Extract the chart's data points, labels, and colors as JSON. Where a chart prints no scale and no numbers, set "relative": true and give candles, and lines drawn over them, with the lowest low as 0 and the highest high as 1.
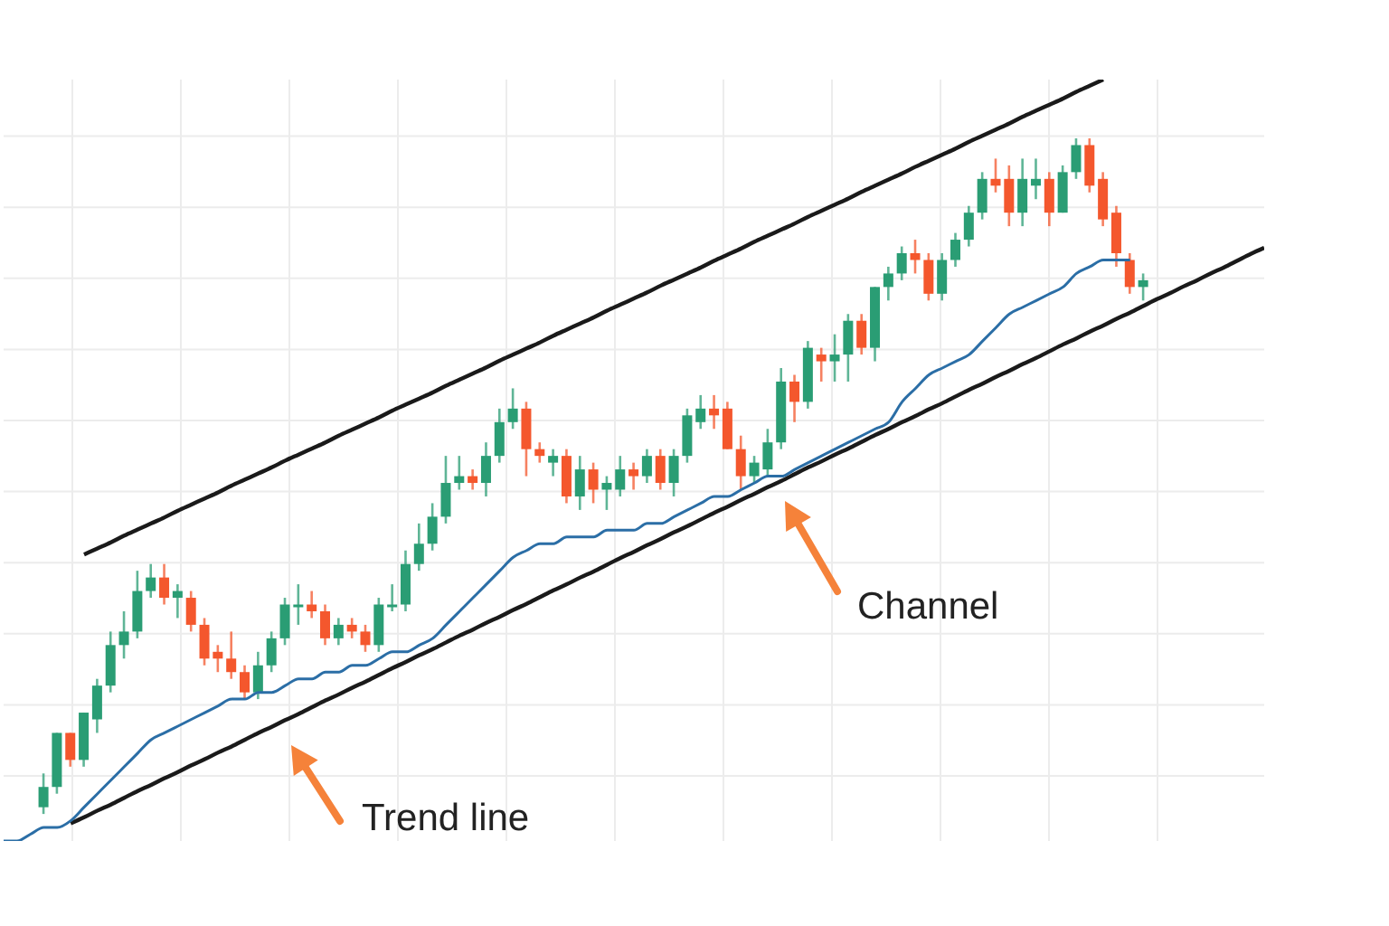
{
  "chart_data": {
    "type": "candlestick",
    "relative": true,
    "grid": true,
    "marker": "none",
    "line_style": "solid",
    "categories": [
      null,
      null,
      null,
      null,
      null,
      null,
      null,
      null,
      null,
      null,
      null,
      null,
      null,
      null,
      null,
      null,
      null,
      null,
      null,
      null,
      null,
      null,
      null,
      null,
      null,
      null,
      null,
      null,
      null,
      null,
      null,
      null,
      null,
      null,
      null,
      null,
      null,
      null,
      null,
      null,
      null,
      null,
      null,
      null,
      null,
      null,
      null,
      null,
      null,
      null,
      null,
      null,
      null,
      null,
      null,
      null,
      null,
      null,
      null,
      null,
      null,
      null,
      null,
      null,
      null,
      null,
      null,
      null,
      null,
      null,
      null,
      null,
      null,
      null,
      null,
      null,
      null,
      null,
      null,
      null,
      null,
      null,
      null,
      null,
      null,
      null,
      null,
      null,
      null,
      null,
      null,
      null,
      null,
      null,
      null
    ],
    "ohlc": [
      null,
      null,
      null,
      [
        0.01,
        0.06,
        0,
        0.04
      ],
      [
        0.04,
        0.12,
        0.03,
        0.12
      ],
      [
        0.12,
        0.12,
        0.07,
        0.08
      ],
      [
        0.08,
        0.15,
        0.07,
        0.15
      ],
      [
        0.14,
        0.2,
        0.12,
        0.19
      ],
      [
        0.19,
        0.27,
        0.18,
        0.25
      ],
      [
        0.25,
        0.3,
        0.23,
        0.27
      ],
      [
        0.27,
        0.36,
        0.26,
        0.33
      ],
      [
        0.33,
        0.37,
        0.32,
        0.35
      ],
      [
        0.35,
        0.37,
        0.31,
        0.32
      ],
      [
        0.32,
        0.34,
        0.29,
        0.33
      ],
      [
        0.32,
        0.33,
        0.27,
        0.28
      ],
      [
        0.28,
        0.29,
        0.22,
        0.23
      ],
      [
        0.24,
        0.25,
        0.21,
        0.23
      ],
      [
        0.23,
        0.27,
        0.2,
        0.21
      ],
      [
        0.21,
        0.22,
        0.17,
        0.18
      ],
      [
        0.18,
        0.24,
        0.17,
        0.22
      ],
      [
        0.22,
        0.27,
        0.21,
        0.26
      ],
      [
        0.26,
        0.32,
        0.25,
        0.31
      ],
      [
        0.31,
        0.34,
        0.28,
        0.31
      ],
      [
        0.31,
        0.33,
        0.29,
        0.3
      ],
      [
        0.3,
        0.31,
        0.25,
        0.26
      ],
      [
        0.26,
        0.29,
        0.25,
        0.28
      ],
      [
        0.28,
        0.29,
        0.26,
        0.27
      ],
      [
        0.27,
        0.28,
        0.24,
        0.25
      ],
      [
        0.25,
        0.32,
        0.24,
        0.31
      ],
      [
        0.31,
        0.34,
        0.3,
        0.31
      ],
      [
        0.31,
        0.39,
        0.3,
        0.37
      ],
      [
        0.37,
        0.43,
        0.36,
        0.4
      ],
      [
        0.4,
        0.46,
        0.39,
        0.44
      ],
      [
        0.44,
        0.53,
        0.43,
        0.49
      ],
      [
        0.49,
        0.53,
        0.48,
        0.5
      ],
      [
        0.5,
        0.51,
        0.48,
        0.49
      ],
      [
        0.49,
        0.55,
        0.47,
        0.53
      ],
      [
        0.53,
        0.6,
        0.52,
        0.58
      ],
      [
        0.58,
        0.63,
        0.57,
        0.6
      ],
      [
        0.6,
        0.61,
        0.5,
        0.54
      ],
      [
        0.54,
        0.55,
        0.52,
        0.53
      ],
      [
        0.52,
        0.54,
        0.5,
        0.53
      ],
      [
        0.53,
        0.54,
        0.46,
        0.47
      ],
      [
        0.47,
        0.53,
        0.45,
        0.51
      ],
      [
        0.51,
        0.52,
        0.46,
        0.48
      ],
      [
        0.48,
        0.5,
        0.45,
        0.49
      ],
      [
        0.48,
        0.53,
        0.47,
        0.51
      ],
      [
        0.51,
        0.52,
        0.48,
        0.5
      ],
      [
        0.5,
        0.54,
        0.49,
        0.53
      ],
      [
        0.53,
        0.54,
        0.48,
        0.49
      ],
      [
        0.49,
        0.54,
        0.47,
        0.53
      ],
      [
        0.53,
        0.6,
        0.52,
        0.59
      ],
      [
        0.58,
        0.62,
        0.57,
        0.6
      ],
      [
        0.6,
        0.62,
        0.57,
        0.59
      ],
      [
        0.6,
        0.61,
        0.54,
        0.54
      ],
      [
        0.54,
        0.56,
        0.48,
        0.5
      ],
      [
        0.5,
        0.53,
        0.49,
        0.52
      ],
      [
        0.51,
        0.57,
        0.5,
        0.55
      ],
      [
        0.55,
        0.66,
        0.54,
        0.64
      ],
      [
        0.64,
        0.65,
        0.58,
        0.61
      ],
      [
        0.61,
        0.7,
        0.6,
        0.69
      ],
      [
        0.68,
        0.69,
        0.64,
        0.67
      ],
      [
        0.67,
        0.71,
        0.64,
        0.68
      ],
      [
        0.68,
        0.74,
        0.64,
        0.73
      ],
      [
        0.73,
        0.74,
        0.68,
        0.69
      ],
      [
        0.69,
        0.78,
        0.67,
        0.78
      ],
      [
        0.78,
        0.81,
        0.76,
        0.8
      ],
      [
        0.8,
        0.84,
        0.79,
        0.83
      ],
      [
        0.83,
        0.85,
        0.8,
        0.82
      ],
      [
        0.82,
        0.83,
        0.76,
        0.77
      ],
      [
        0.77,
        0.83,
        0.76,
        0.82
      ],
      [
        0.82,
        0.86,
        0.81,
        0.85
      ],
      [
        0.85,
        0.9,
        0.84,
        0.89
      ],
      [
        0.89,
        0.95,
        0.88,
        0.94
      ],
      [
        0.94,
        0.97,
        0.92,
        0.93
      ],
      [
        0.94,
        0.96,
        0.87,
        0.89
      ],
      [
        0.89,
        0.97,
        0.87,
        0.94
      ],
      [
        0.93,
        0.97,
        0.91,
        0.94
      ],
      [
        0.94,
        0.95,
        0.87,
        0.89
      ],
      [
        0.89,
        0.96,
        0.89,
        0.95
      ],
      [
        0.95,
        1,
        0.94,
        0.99
      ],
      [
        0.99,
        1,
        0.92,
        0.93
      ],
      [
        0.94,
        0.95,
        0.87,
        0.88
      ],
      [
        0.89,
        0.9,
        0.81,
        0.83
      ],
      [
        0.82,
        0.83,
        0.77,
        0.78
      ],
      [
        0.78,
        0.8,
        0.76,
        0.79
      ],
      null,
      null,
      null,
      null,
      null,
      null,
      null,
      null,
      null
    ],
    "colors": [
      null,
      null,
      null,
      "#2a9d74",
      "#2a9d74",
      "#f4572d",
      "#2a9d74",
      "#2a9d74",
      "#2a9d74",
      "#2a9d74",
      "#2a9d74",
      "#2a9d74",
      "#f4572d",
      "#2a9d74",
      "#f4572d",
      "#f4572d",
      "#f4572d",
      "#f4572d",
      "#f4572d",
      "#2a9d74",
      "#2a9d74",
      "#2a9d74",
      "#2a9d74",
      "#f4572d",
      "#f4572d",
      "#2a9d74",
      "#f4572d",
      "#f4572d",
      "#2a9d74",
      "#2a9d74",
      "#2a9d74",
      "#2a9d74",
      "#2a9d74",
      "#2a9d74",
      "#2a9d74",
      "#f4572d",
      "#2a9d74",
      "#2a9d74",
      "#2a9d74",
      "#f4572d",
      "#f4572d",
      "#2a9d74",
      "#f4572d",
      "#2a9d74",
      "#f4572d",
      "#2a9d74",
      "#2a9d74",
      "#f4572d",
      "#2a9d74",
      "#f4572d",
      "#2a9d74",
      "#2a9d74",
      "#2a9d74",
      "#f4572d",
      "#f4572d",
      "#f4572d",
      "#2a9d74",
      "#2a9d74",
      "#2a9d74",
      "#f4572d",
      "#2a9d74",
      "#f4572d",
      "#2a9d74",
      "#2a9d74",
      "#f4572d",
      "#2a9d74",
      "#2a9d74",
      "#2a9d74",
      "#f4572d",
      "#f4572d",
      "#2a9d74",
      "#2a9d74",
      "#2a9d74",
      "#2a9d74",
      "#f4572d",
      "#f4572d",
      "#2a9d74",
      "#2a9d74",
      "#f4572d",
      "#2a9d74",
      "#2a9d74",
      "#f4572d",
      "#f4572d",
      "#f4572d",
      "#f4572d",
      "#2a9d74",
      null,
      null,
      null,
      null,
      null,
      null,
      null,
      null,
      null
    ],
    "series": [
      {
        "type": "line",
        "color": "#1a1a1a",
        "values": [
          null,
          null,
          null,
          null,
          null,
          -0.014,
          -0.005,
          0.005,
          0.014,
          0.024,
          0.034,
          0.043,
          0.053,
          0.062,
          0.072,
          0.081,
          0.091,
          0.1,
          0.11,
          0.12,
          0.129,
          0.139,
          0.148,
          0.158,
          0.168,
          0.177,
          0.187,
          0.196,
          0.206,
          0.216,
          0.225,
          0.235,
          0.244,
          0.254,
          0.264,
          0.273,
          0.283,
          0.292,
          0.302,
          0.311,
          0.321,
          0.331,
          0.34,
          0.35,
          0.359,
          0.369,
          0.379,
          0.388,
          0.398,
          0.407,
          0.417,
          0.426,
          0.436,
          0.446,
          0.455,
          0.465,
          0.474,
          0.484,
          0.493,
          0.503,
          0.513,
          0.522,
          0.532,
          0.541,
          0.551,
          0.561,
          0.57,
          0.58,
          0.589,
          0.599,
          0.608,
          0.618,
          0.628,
          0.637,
          0.647,
          0.656,
          0.666,
          0.675,
          0.685,
          0.695,
          0.704,
          0.714,
          0.723,
          0.733,
          0.742,
          0.752,
          0.762,
          0.771,
          0.781,
          0.79,
          0.8,
          0.809,
          0.819,
          0.829,
          0.838
        ]
      },
      {
        "type": "line",
        "color": "#1a1a1a",
        "values": [
          null,
          null,
          null,
          null,
          null,
          null,
          0.384,
          0.393,
          0.402,
          0.412,
          0.421,
          0.43,
          0.439,
          0.449,
          0.458,
          0.467,
          0.476,
          0.486,
          0.495,
          0.504,
          0.513,
          0.523,
          0.532,
          0.541,
          0.55,
          0.56,
          0.569,
          0.578,
          0.587,
          0.597,
          0.606,
          0.615,
          0.624,
          0.634,
          0.643,
          0.652,
          0.661,
          0.671,
          0.68,
          0.689,
          0.698,
          0.708,
          0.717,
          0.726,
          0.735,
          0.745,
          0.754,
          0.763,
          0.772,
          0.782,
          0.791,
          0.8,
          0.809,
          0.819,
          0.828,
          0.837,
          0.847,
          0.856,
          0.865,
          0.874,
          0.884,
          0.893,
          0.902,
          0.911,
          0.921,
          0.93,
          0.939,
          0.948,
          0.958,
          0.967,
          0.976,
          0.985,
          0.995,
          1.004,
          1.013,
          1.022,
          1.032,
          1.041,
          1.05,
          1.059,
          1.069,
          1.078,
          1.087,
          null,
          null,
          null,
          null,
          null,
          null,
          null,
          null,
          null,
          null,
          null,
          null
        ]
      },
      {
        "type": "line",
        "color": "#2b6ea6",
        "values": [
          -0.04,
          -0.04,
          -0.03,
          -0.02,
          -0.02,
          -0.01,
          0.01,
          0.03,
          0.05,
          0.07,
          0.09,
          0.11,
          0.12,
          0.13,
          0.14,
          0.15,
          0.16,
          0.17,
          0.17,
          0.18,
          0.18,
          0.19,
          0.2,
          0.2,
          0.21,
          0.21,
          0.22,
          0.22,
          0.23,
          0.24,
          0.24,
          0.25,
          0.26,
          0.28,
          0.3,
          0.32,
          0.34,
          0.36,
          0.38,
          0.39,
          0.4,
          0.4,
          0.41,
          0.41,
          0.41,
          0.42,
          0.42,
          0.42,
          0.43,
          0.43,
          0.44,
          0.45,
          0.46,
          0.47,
          0.47,
          0.48,
          0.49,
          0.5,
          0.5,
          0.51,
          0.52,
          0.53,
          0.54,
          0.55,
          0.56,
          0.57,
          0.58,
          0.61,
          0.63,
          0.65,
          0.66,
          0.67,
          0.68,
          0.7,
          0.72,
          0.74,
          0.75,
          0.76,
          0.77,
          0.78,
          0.8,
          0.81,
          0.82,
          0.82,
          0.82,
          null,
          null,
          null,
          null,
          null,
          null,
          null,
          null,
          null,
          null
        ]
      }
    ],
    "annotations": [
      "Trend line",
      "Channel"
    ]
  }
}
